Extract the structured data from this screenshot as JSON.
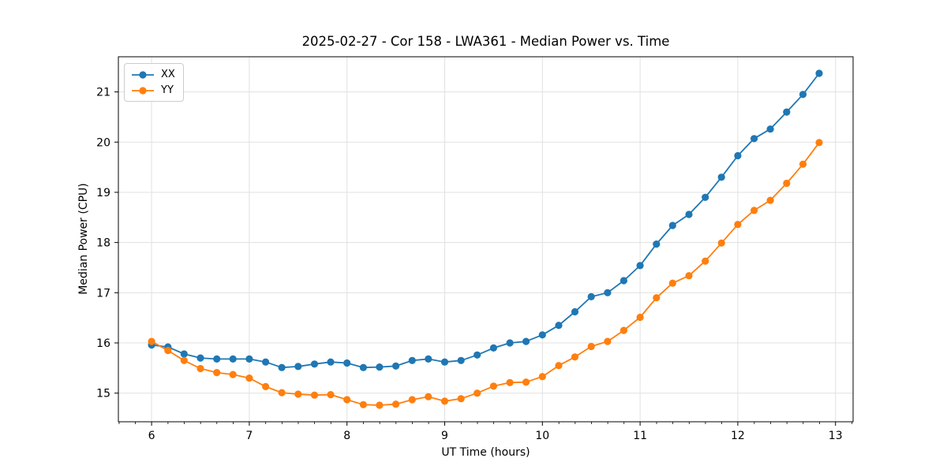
{
  "chart_data": {
    "type": "line",
    "title": "2025-02-27 - Cor 158 - LWA361 - Median Power vs. Time",
    "xlabel": "UT Time (hours)",
    "ylabel": "Median Power (CPU)",
    "xlim": [
      5.66,
      13.18
    ],
    "ylim": [
      14.43,
      21.7
    ],
    "xticks": [
      6,
      7,
      8,
      9,
      10,
      11,
      12,
      13
    ],
    "yticks": [
      15,
      16,
      17,
      18,
      19,
      20,
      21
    ],
    "minor_xtick_step": 0.1667,
    "grid": true,
    "legend_position": "upper-left",
    "marker": "circle",
    "x": [
      6.0,
      6.167,
      6.333,
      6.5,
      6.667,
      6.833,
      7.0,
      7.167,
      7.333,
      7.5,
      7.667,
      7.833,
      8.0,
      8.167,
      8.333,
      8.5,
      8.667,
      8.833,
      9.0,
      9.167,
      9.333,
      9.5,
      9.667,
      9.833,
      10.0,
      10.167,
      10.333,
      10.5,
      10.667,
      10.833,
      11.0,
      11.167,
      11.333,
      11.5,
      11.667,
      11.833,
      12.0,
      12.167,
      12.333,
      12.5,
      12.667,
      12.833
    ],
    "series": [
      {
        "name": "XX",
        "color": "#1f77b4",
        "values": [
          15.96,
          15.92,
          15.78,
          15.7,
          15.68,
          15.68,
          15.68,
          15.62,
          15.51,
          15.53,
          15.58,
          15.62,
          15.6,
          15.51,
          15.52,
          15.54,
          15.65,
          15.68,
          15.62,
          15.65,
          15.76,
          15.9,
          16.0,
          16.03,
          16.16,
          16.35,
          16.62,
          16.92,
          17.0,
          17.24,
          17.54,
          17.97,
          18.34,
          18.56,
          18.9,
          19.3,
          19.73,
          20.07,
          20.26,
          20.6,
          20.95,
          21.37
        ]
      },
      {
        "name": "YY",
        "color": "#ff7f0e",
        "values": [
          16.03,
          15.85,
          15.65,
          15.49,
          15.41,
          15.37,
          15.3,
          15.13,
          15.01,
          14.98,
          14.96,
          14.97,
          14.87,
          14.77,
          14.76,
          14.78,
          14.87,
          14.93,
          14.84,
          14.89,
          15.0,
          15.14,
          15.21,
          15.22,
          15.33,
          15.55,
          15.72,
          15.93,
          16.03,
          16.25,
          16.51,
          16.9,
          17.19,
          17.34,
          17.63,
          17.99,
          18.36,
          18.64,
          18.84,
          19.18,
          19.56,
          19.99
        ]
      }
    ],
    "colors": {
      "grid": "#e1e1e1",
      "spine": "#000000",
      "text": "#000000",
      "legend_border": "#cccccc"
    }
  }
}
